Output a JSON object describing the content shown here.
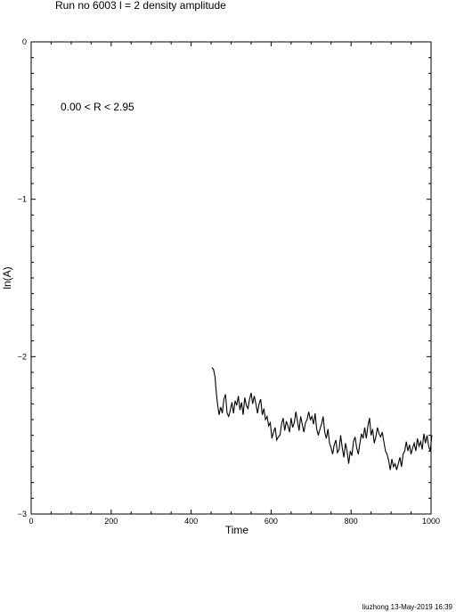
{
  "title": "Run no  6003  l =  2  density amplitude",
  "annotation": "0.00 < R <  2.95",
  "footer": "liuzhong 13-May-2019 16:39",
  "chart_data": {
    "type": "line",
    "xlabel": "Time",
    "ylabel": "ln(A)",
    "xlim": [
      0,
      1000
    ],
    "ylim": [
      -3,
      0
    ],
    "xticks": [
      0,
      200,
      400,
      600,
      800,
      1000
    ],
    "yticks": [
      0,
      -1,
      -2,
      -3
    ],
    "grid": false,
    "series": [
      {
        "x": [
          452,
          456,
          460,
          462,
          466,
          470,
          474,
          478,
          482,
          486,
          490,
          494,
          498,
          502,
          506,
          510,
          514,
          518,
          522,
          526,
          530,
          534,
          538,
          542,
          546,
          550,
          554,
          558,
          562,
          566,
          570,
          574,
          578,
          582,
          586,
          590,
          594,
          598,
          602,
          606,
          610,
          614,
          618,
          622,
          626,
          630,
          634,
          638,
          642,
          646,
          650,
          654,
          658,
          662,
          666,
          670,
          674,
          678,
          682,
          686,
          690,
          694,
          698,
          702,
          706,
          710,
          714,
          718,
          722,
          726,
          730,
          734,
          738,
          742,
          746,
          750,
          754,
          758,
          762,
          766,
          770,
          774,
          778,
          782,
          786,
          790,
          794,
          798,
          802,
          806,
          810,
          814,
          818,
          822,
          826,
          830,
          834,
          838,
          842,
          846,
          850,
          854,
          858,
          862,
          866,
          870,
          874,
          878,
          882,
          886,
          890,
          894,
          898,
          902,
          906,
          910,
          914,
          918,
          922,
          926,
          930,
          934,
          938,
          942,
          946,
          950,
          954,
          958,
          962,
          966,
          970,
          974,
          978,
          982,
          986,
          990,
          994,
          998,
          1002
        ],
        "y": [
          -2.07,
          -2.08,
          -2.13,
          -2.2,
          -2.3,
          -2.37,
          -2.32,
          -2.36,
          -2.27,
          -2.24,
          -2.36,
          -2.38,
          -2.34,
          -2.29,
          -2.36,
          -2.28,
          -2.31,
          -2.25,
          -2.34,
          -2.29,
          -2.37,
          -2.26,
          -2.31,
          -2.33,
          -2.27,
          -2.23,
          -2.3,
          -2.25,
          -2.3,
          -2.36,
          -2.3,
          -2.27,
          -2.37,
          -2.33,
          -2.4,
          -2.38,
          -2.44,
          -2.42,
          -2.52,
          -2.48,
          -2.45,
          -2.53,
          -2.51,
          -2.5,
          -2.43,
          -2.39,
          -2.47,
          -2.41,
          -2.44,
          -2.48,
          -2.39,
          -2.45,
          -2.42,
          -2.35,
          -2.41,
          -2.47,
          -2.38,
          -2.43,
          -2.48,
          -2.42,
          -2.4,
          -2.35,
          -2.4,
          -2.38,
          -2.43,
          -2.36,
          -2.46,
          -2.5,
          -2.46,
          -2.43,
          -2.38,
          -2.48,
          -2.52,
          -2.46,
          -2.55,
          -2.58,
          -2.62,
          -2.56,
          -2.53,
          -2.61,
          -2.59,
          -2.5,
          -2.58,
          -2.64,
          -2.55,
          -2.6,
          -2.68,
          -2.6,
          -2.63,
          -2.54,
          -2.51,
          -2.58,
          -2.62,
          -2.55,
          -2.49,
          -2.52,
          -2.45,
          -2.52,
          -2.44,
          -2.39,
          -2.5,
          -2.46,
          -2.55,
          -2.51,
          -2.45,
          -2.49,
          -2.51,
          -2.48,
          -2.54,
          -2.6,
          -2.62,
          -2.66,
          -2.72,
          -2.65,
          -2.7,
          -2.68,
          -2.72,
          -2.68,
          -2.64,
          -2.7,
          -2.62,
          -2.6,
          -2.54,
          -2.6,
          -2.56,
          -2.62,
          -2.58,
          -2.55,
          -2.6,
          -2.52,
          -2.57,
          -2.54,
          -2.59,
          -2.49,
          -2.55,
          -2.5,
          -2.57,
          -2.6,
          -2.5
        ]
      }
    ]
  }
}
